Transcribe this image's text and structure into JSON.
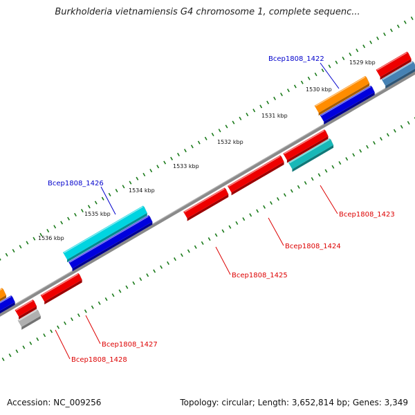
{
  "title": "Burkholderia vietnamiensis G4 chromosome 1, complete sequenc...",
  "footer": {
    "accession": "Accession: NC_009256",
    "summary": "Topology: circular; Length: 3,652,814 bp; Genes: 3,349"
  },
  "ticks": [
    "1529 kbp",
    "1530 kbp",
    "1531 kbp",
    "1532 kbp",
    "1533 kbp",
    "1534 kbp",
    "1535 kbp",
    "1536 kbp"
  ],
  "colors": {
    "backbone": "#8a8a8a",
    "tick": "#1a7a1a",
    "gene_cds": "#ee0000",
    "rna_cyan": "#00d4e0",
    "protein_blue": "#0000dd",
    "orange": "#ff8c00",
    "teal": "#18b8b8",
    "steel": "#4682b4",
    "gray": "#b0b0b0",
    "label_blue": "#0000cc",
    "label_red": "#dd0000"
  },
  "gene_labels": [
    {
      "text": "Bcep1808_1422",
      "color": "label_blue"
    },
    {
      "text": "Bcep1808_1423",
      "color": "label_red"
    },
    {
      "text": "Bcep1808_1424",
      "color": "label_red"
    },
    {
      "text": "Bcep1808_1425",
      "color": "label_red"
    },
    {
      "text": "Bcep1808_1426",
      "color": "label_blue"
    },
    {
      "text": "Bcep1808_1427",
      "color": "label_red"
    },
    {
      "text": "Bcep1808_1428",
      "color": "label_red"
    }
  ]
}
